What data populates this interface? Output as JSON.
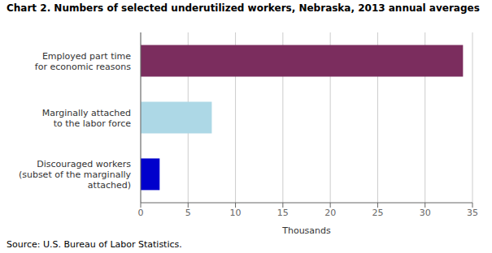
{
  "chart_data": {
    "type": "bar",
    "orientation": "horizontal",
    "title": "Chart 2.  Numbers of selected underutilized workers, Nebraska, 2013  annual averages",
    "categories": [
      "Discouraged workers\n(subset of the marginally\nattached)",
      "Marginally attached\nto the labor force",
      "Employed part time\nfor economic reasons"
    ],
    "values": [
      2.0,
      7.5,
      34.0
    ],
    "colors": [
      "#0000cc",
      "#add8e6",
      "#7b2d5e"
    ],
    "xlabel": "Thousands",
    "xlim": [
      0,
      35
    ],
    "xticks": [
      0,
      5,
      10,
      15,
      20,
      25,
      30,
      35
    ],
    "grid": true,
    "source": "Source: U.S. Bureau of Labor Statistics."
  }
}
